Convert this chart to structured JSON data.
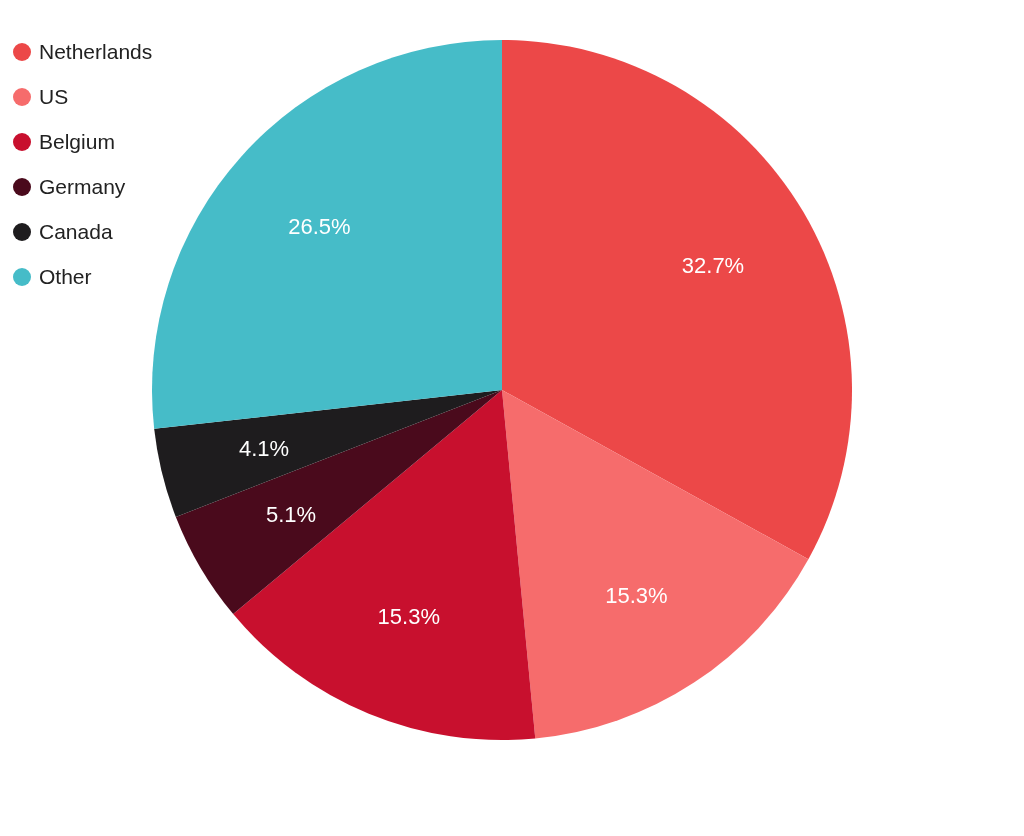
{
  "chart_data": {
    "type": "pie",
    "categories": [
      "Netherlands",
      "US",
      "Belgium",
      "Germany",
      "Canada",
      "Other"
    ],
    "values": [
      32.7,
      15.3,
      15.3,
      5.1,
      4.1,
      26.5
    ],
    "colors": [
      "#ec4848",
      "#f66c6c",
      "#c8102e",
      "#4a0a1c",
      "#1e1c1e",
      "#46bcc8"
    ],
    "value_labels": [
      "32.7%",
      "15.3%",
      "15.3%",
      "5.1%",
      "4.1%",
      "26.5%"
    ],
    "legend": "top left"
  }
}
